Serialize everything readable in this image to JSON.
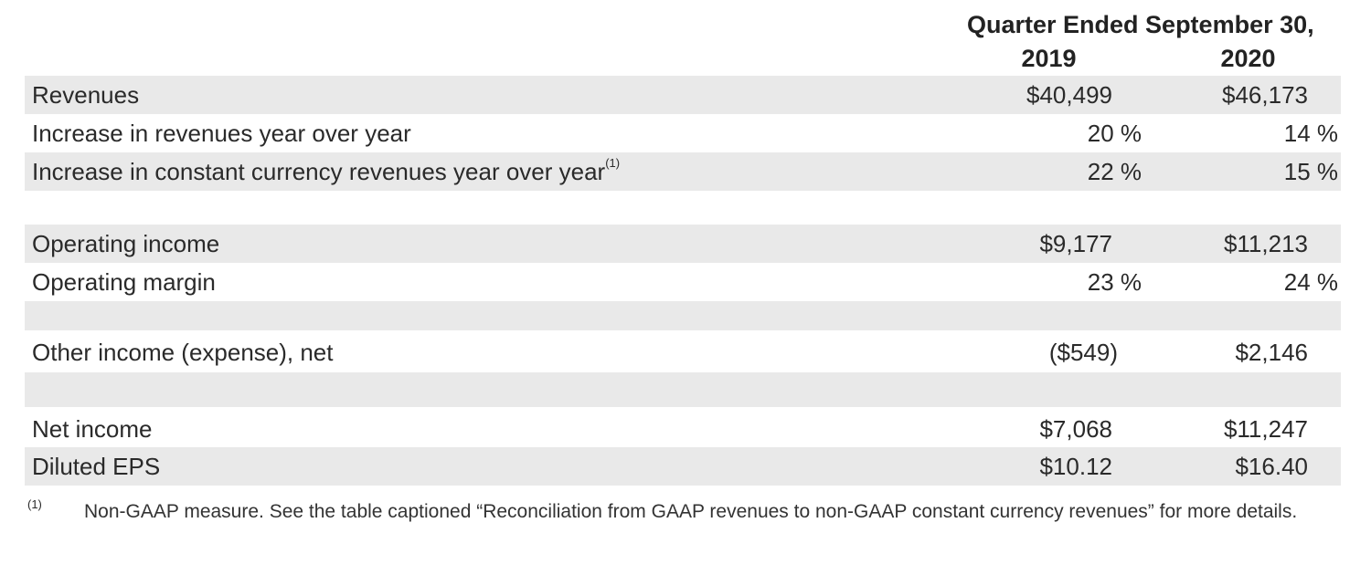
{
  "header": {
    "title": "Quarter Ended September 30,",
    "year_1": "2019",
    "year_2": "2020"
  },
  "rows": [
    {
      "label": "Revenues",
      "sup": "",
      "v2019": "$40,499",
      "v2020": "$46,173"
    },
    {
      "label": "Increase in revenues year over year",
      "sup": "",
      "v2019": "20 %",
      "v2020": "14 %"
    },
    {
      "label": "Increase in constant currency revenues year over year",
      "sup": "(1)",
      "v2019": "22 %",
      "v2020": "15 %"
    },
    {
      "label": "Operating income",
      "sup": "",
      "v2019": "$9,177",
      "v2020": "$11,213"
    },
    {
      "label": "Operating margin",
      "sup": "",
      "v2019": "23 %",
      "v2020": "24 %"
    },
    {
      "label": "Other income (expense), net",
      "sup": "",
      "v2019": "($549)",
      "v2020": "$2,146"
    },
    {
      "label": "Net income",
      "sup": "",
      "v2019": "$7,068",
      "v2020": "$11,247"
    },
    {
      "label": "Diluted EPS",
      "sup": "",
      "v2019": "$10.12",
      "v2020": "$16.40"
    }
  ],
  "footnote": {
    "marker": "(1)",
    "text": "Non-GAAP measure. See the table captioned “Reconciliation from GAAP revenues to non-GAAP constant currency revenues” for more details."
  }
}
